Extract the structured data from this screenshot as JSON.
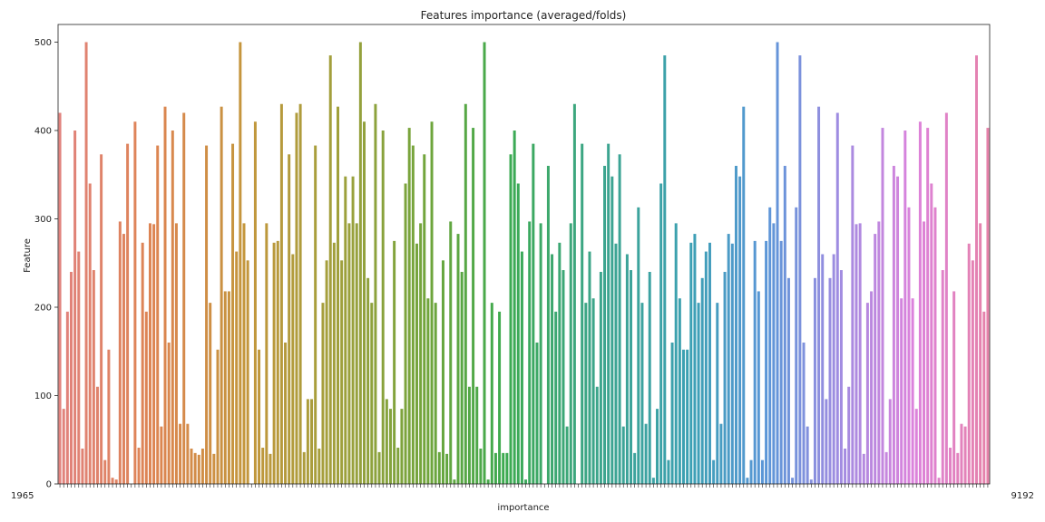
{
  "chart_data": {
    "type": "bar",
    "title": "Features importance (averaged/folds)",
    "xlabel": "importance",
    "ylabel": "Feature",
    "ylim": [
      0,
      520
    ],
    "yticks": [
      0,
      100,
      200,
      300,
      400,
      500
    ],
    "grid": false,
    "legend": "none",
    "x_edge_labels": {
      "left": "1965",
      "right": "9192"
    },
    "values": [
      420,
      85,
      195,
      240,
      400,
      263,
      40,
      500,
      340,
      242,
      110,
      373,
      27,
      152,
      7,
      5,
      297,
      283,
      385,
      0,
      410,
      41,
      273,
      195,
      295,
      294,
      383,
      65,
      427,
      160,
      400,
      295,
      68,
      420,
      68,
      40,
      35,
      33,
      40,
      383,
      205,
      34,
      152,
      427,
      218,
      218,
      385,
      263,
      500,
      295,
      253,
      0,
      410,
      152,
      41,
      295,
      34,
      273,
      275,
      430,
      160,
      373,
      260,
      420,
      430,
      36,
      96,
      96,
      383,
      40,
      205,
      253,
      485,
      273,
      427,
      253,
      348,
      295,
      348,
      295,
      500,
      410,
      233,
      205,
      430,
      36,
      400,
      96,
      85,
      275,
      41,
      85,
      340,
      403,
      383,
      272,
      295,
      373,
      210,
      410,
      205,
      36,
      253,
      34,
      297,
      5,
      283,
      240,
      430,
      110,
      403,
      110,
      40,
      500,
      5,
      205,
      35,
      195,
      35,
      35,
      373,
      400,
      340,
      263,
      5,
      297,
      385,
      160,
      295,
      0,
      360,
      260,
      195,
      273,
      242,
      65,
      295,
      430,
      0,
      385,
      205,
      263,
      210,
      110,
      240,
      360,
      385,
      348,
      272,
      373,
      65,
      260,
      242,
      35,
      313,
      205,
      68,
      240,
      7,
      85,
      340,
      485,
      27,
      160,
      295,
      210,
      152,
      152,
      273,
      283,
      205,
      233,
      263,
      273,
      27,
      205,
      68,
      240,
      283,
      272,
      360,
      348,
      427,
      7,
      27,
      275,
      218,
      27,
      275,
      313,
      295,
      500,
      275,
      360,
      233,
      7,
      313,
      485,
      160,
      65,
      5,
      233,
      427,
      260,
      96,
      233,
      260,
      420,
      242,
      40,
      110,
      383,
      294,
      295,
      34,
      205,
      218,
      283,
      297,
      403,
      36,
      96,
      360,
      348,
      210,
      400,
      313,
      210,
      85,
      410,
      297,
      403,
      340,
      313,
      7,
      242,
      420,
      41,
      218,
      35,
      68,
      65,
      272,
      253,
      485,
      295,
      195,
      403
    ]
  }
}
